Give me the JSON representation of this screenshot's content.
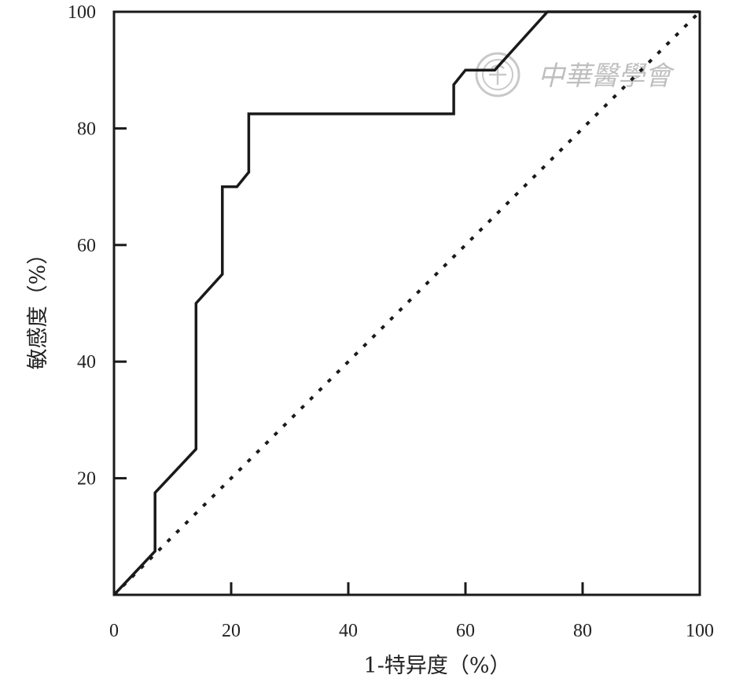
{
  "chart_data": {
    "type": "line",
    "xlabel": "1-特异度（%）",
    "ylabel": "敏感度（%）",
    "xlim": [
      0,
      100
    ],
    "ylim": [
      0,
      100
    ],
    "x_ticks": [
      0,
      20,
      40,
      60,
      80,
      100
    ],
    "y_ticks": [
      20,
      40,
      60,
      80,
      100
    ],
    "grid": false,
    "series": [
      {
        "style": "solid",
        "color": "#1a1a1a",
        "points": [
          [
            0,
            0
          ],
          [
            7,
            7.5
          ],
          [
            7,
            17.5
          ],
          [
            14,
            25
          ],
          [
            14,
            50
          ],
          [
            18.5,
            55
          ],
          [
            18.5,
            70
          ],
          [
            21,
            70
          ],
          [
            23,
            72.5
          ],
          [
            23,
            82.5
          ],
          [
            58,
            82.5
          ],
          [
            58,
            87.5
          ],
          [
            60,
            90
          ],
          [
            65,
            90
          ],
          [
            74,
            100
          ],
          [
            100,
            100
          ]
        ]
      },
      {
        "style": "dotted",
        "color": "#1a1a1a",
        "points": [
          [
            0,
            0
          ],
          [
            100,
            100
          ]
        ]
      }
    ]
  },
  "watermark": {
    "text": "中華醫學會",
    "icon": "society-seal-icon"
  }
}
